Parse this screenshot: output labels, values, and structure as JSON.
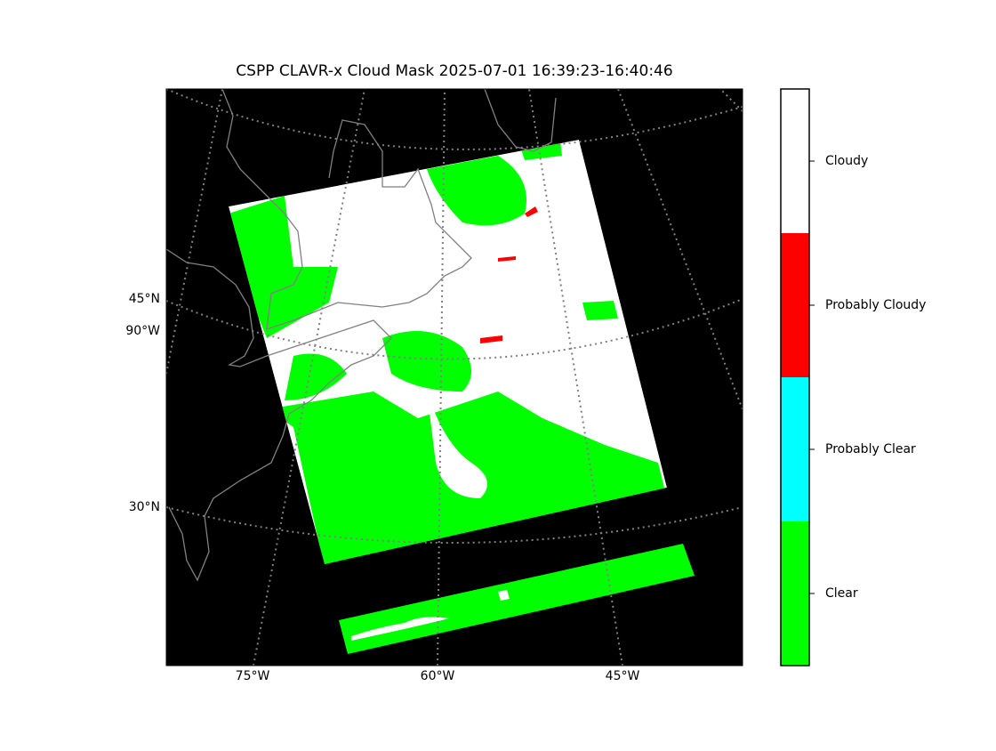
{
  "title": "CSPP CLAVR-x Cloud Mask 2025-07-01 16:39:23-16:40:46",
  "map": {
    "lat_labels": [
      "45°N",
      "30°N"
    ],
    "lon_labels": [
      "75°W",
      "60°W",
      "45°W"
    ],
    "extra_lon_label": "90°W"
  },
  "colorbar": {
    "classes": [
      {
        "label": "Clear",
        "color": "#00ff00"
      },
      {
        "label": "Probably Clear",
        "color": "#00ffff"
      },
      {
        "label": "Probably Cloudy",
        "color": "#ff0000"
      },
      {
        "label": "Cloudy",
        "color": "#ffffff"
      }
    ]
  }
}
